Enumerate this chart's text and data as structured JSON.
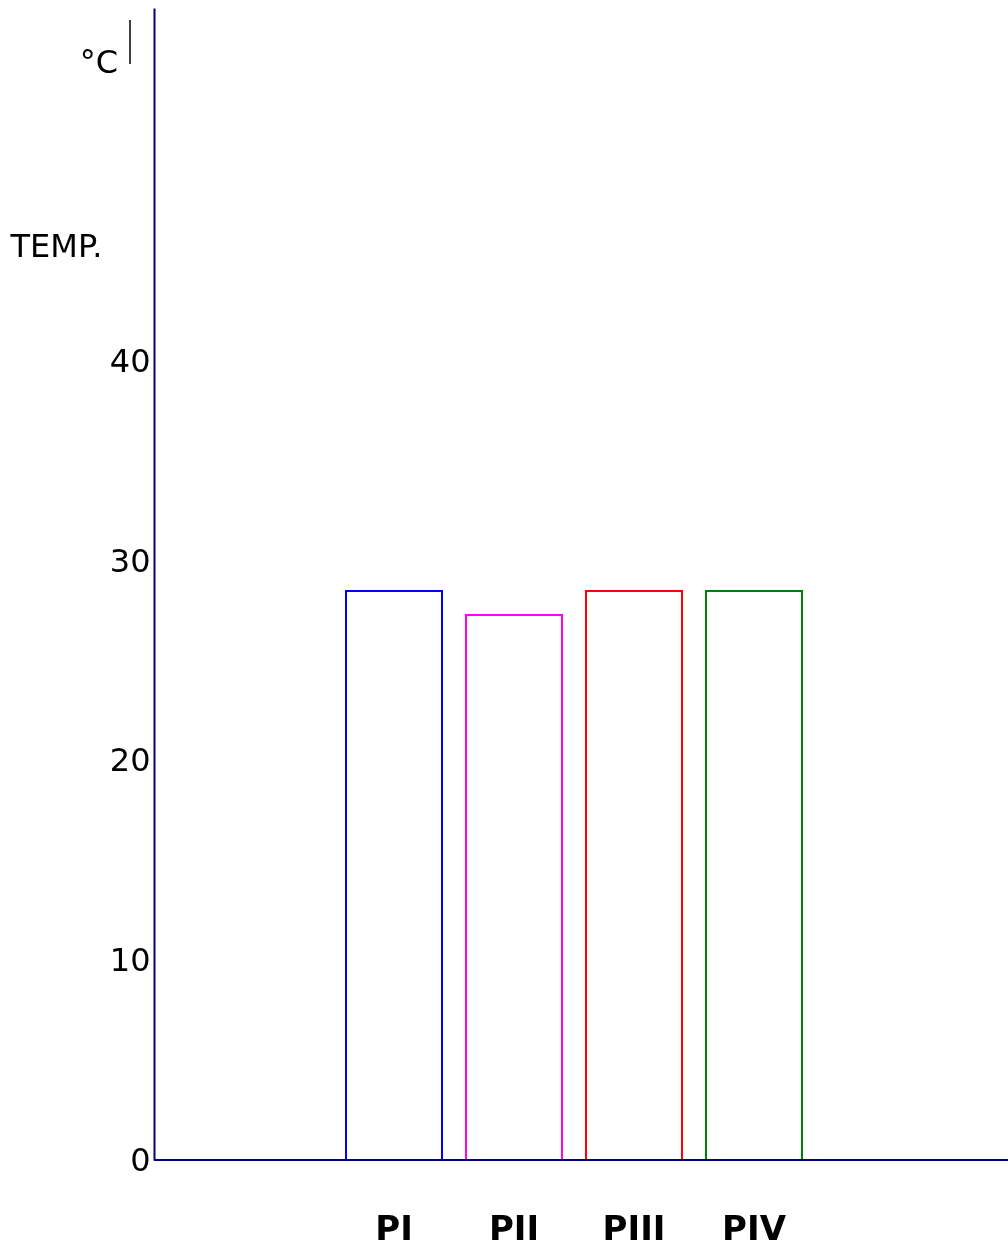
{
  "chart_data": {
    "type": "bar",
    "ylabel": "TEMP.",
    "annotations": [
      "°C"
    ],
    "categories": [
      "PI",
      "PII",
      "PIII",
      "PIV"
    ],
    "values": [
      28.5,
      27.3,
      28.5,
      28.5
    ],
    "colors": [
      "#0000ff",
      "#ff00ff",
      "#ff0000",
      "#008000"
    ],
    "ylim": [
      0,
      57.7
    ],
    "yticks": [
      0,
      10,
      20,
      30,
      40
    ],
    "grid": false
  }
}
